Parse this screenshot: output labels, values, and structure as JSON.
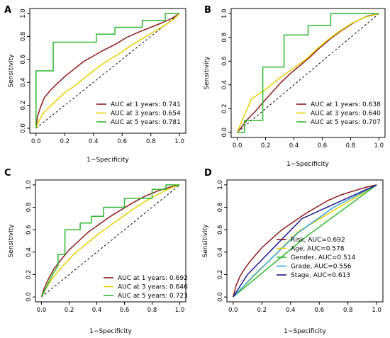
{
  "chart_data": [
    {
      "type": "line",
      "panel": "A",
      "xlabel": "1−Specificity",
      "ylabel": "Sensitivity",
      "xlim": [
        0,
        1
      ],
      "ylim": [
        0,
        1
      ],
      "xticks": [
        "0.0",
        "0.2",
        "0.4",
        "0.6",
        "0.8",
        "1.0"
      ],
      "yticks": [
        "0.0",
        "0.2",
        "0.4",
        "0.6",
        "0.8",
        "1.0"
      ],
      "legend_position": "bottom-right",
      "reference_line": "diagonal-dashed",
      "series": [
        {
          "name": "AUC at 1 years: 0.741",
          "color": "#8B1A1A",
          "points": [
            [
              0,
              0
            ],
            [
              0.01,
              0.1
            ],
            [
              0.03,
              0.18
            ],
            [
              0.06,
              0.27
            ],
            [
              0.1,
              0.33
            ],
            [
              0.14,
              0.38
            ],
            [
              0.2,
              0.45
            ],
            [
              0.27,
              0.52
            ],
            [
              0.33,
              0.58
            ],
            [
              0.4,
              0.63
            ],
            [
              0.47,
              0.68
            ],
            [
              0.55,
              0.73
            ],
            [
              0.63,
              0.79
            ],
            [
              0.72,
              0.84
            ],
            [
              0.8,
              0.88
            ],
            [
              0.88,
              0.92
            ],
            [
              0.95,
              0.96
            ],
            [
              1,
              1
            ]
          ]
        },
        {
          "name": "AUC at 3 years: 0.654",
          "color": "#E6D000",
          "points": [
            [
              0,
              0
            ],
            [
              0.02,
              0.06
            ],
            [
              0.05,
              0.13
            ],
            [
              0.09,
              0.18
            ],
            [
              0.14,
              0.24
            ],
            [
              0.2,
              0.31
            ],
            [
              0.27,
              0.37
            ],
            [
              0.34,
              0.44
            ],
            [
              0.42,
              0.52
            ],
            [
              0.5,
              0.59
            ],
            [
              0.58,
              0.65
            ],
            [
              0.66,
              0.72
            ],
            [
              0.74,
              0.78
            ],
            [
              0.82,
              0.84
            ],
            [
              0.9,
              0.9
            ],
            [
              0.96,
              0.95
            ],
            [
              1,
              1
            ]
          ]
        },
        {
          "name": "AUC at 5 years: 0.781",
          "color": "#2EB82E",
          "points": [
            [
              0,
              0
            ],
            [
              0,
              0.5
            ],
            [
              0.12,
              0.5
            ],
            [
              0.12,
              0.75
            ],
            [
              0.42,
              0.75
            ],
            [
              0.42,
              0.82
            ],
            [
              0.55,
              0.82
            ],
            [
              0.55,
              0.88
            ],
            [
              0.74,
              0.88
            ],
            [
              0.74,
              0.94
            ],
            [
              0.9,
              0.94
            ],
            [
              0.9,
              1
            ],
            [
              1,
              1
            ]
          ]
        }
      ]
    },
    {
      "type": "line",
      "panel": "B",
      "xlabel": "1−Specificity",
      "ylabel": "Sensitivity",
      "xlim": [
        0,
        1
      ],
      "ylim": [
        0,
        1
      ],
      "xticks": [
        "0.0",
        "0.2",
        "0.4",
        "0.6",
        "0.8",
        "1.0"
      ],
      "yticks": [
        "0.0",
        "0.2",
        "0.4",
        "0.6",
        "0.8",
        "1.0"
      ],
      "legend_position": "bottom-right",
      "reference_line": "diagonal-dashed",
      "series": [
        {
          "name": "AUC at 1 years: 0.638",
          "color": "#8B1A1A",
          "points": [
            [
              0,
              0
            ],
            [
              0.04,
              0.06
            ],
            [
              0.08,
              0.12
            ],
            [
              0.13,
              0.18
            ],
            [
              0.18,
              0.25
            ],
            [
              0.24,
              0.33
            ],
            [
              0.3,
              0.41
            ],
            [
              0.37,
              0.49
            ],
            [
              0.44,
              0.56
            ],
            [
              0.51,
              0.63
            ],
            [
              0.58,
              0.71
            ],
            [
              0.66,
              0.79
            ],
            [
              0.74,
              0.86
            ],
            [
              0.83,
              0.93
            ],
            [
              0.92,
              0.98
            ],
            [
              1,
              1
            ]
          ]
        },
        {
          "name": "AUC at 3 years: 0.640",
          "color": "#E6D000",
          "points": [
            [
              0,
              0
            ],
            [
              0.03,
              0.09
            ],
            [
              0.07,
              0.2
            ],
            [
              0.1,
              0.28
            ],
            [
              0.16,
              0.33
            ],
            [
              0.22,
              0.38
            ],
            [
              0.28,
              0.44
            ],
            [
              0.35,
              0.5
            ],
            [
              0.42,
              0.56
            ],
            [
              0.49,
              0.62
            ],
            [
              0.56,
              0.7
            ],
            [
              0.64,
              0.78
            ],
            [
              0.72,
              0.85
            ],
            [
              0.81,
              0.92
            ],
            [
              0.9,
              0.97
            ],
            [
              1,
              1
            ]
          ]
        },
        {
          "name": "AUC at 5 years: 0.707",
          "color": "#2EB82E",
          "points": [
            [
              0,
              0
            ],
            [
              0.05,
              0
            ],
            [
              0.05,
              0.1
            ],
            [
              0.18,
              0.1
            ],
            [
              0.18,
              0.55
            ],
            [
              0.33,
              0.55
            ],
            [
              0.33,
              0.82
            ],
            [
              0.5,
              0.82
            ],
            [
              0.5,
              0.9
            ],
            [
              0.66,
              0.9
            ],
            [
              0.66,
              1
            ],
            [
              1,
              1
            ]
          ]
        }
      ]
    },
    {
      "type": "line",
      "panel": "C",
      "xlabel": "1−Specificity",
      "ylabel": "Sensitivity",
      "xlim": [
        0,
        1
      ],
      "ylim": [
        0,
        1
      ],
      "xticks": [
        "0.0",
        "0.2",
        "0.4",
        "0.6",
        "0.8",
        "1.0"
      ],
      "yticks": [
        "0.0",
        "0.2",
        "0.4",
        "0.6",
        "0.8",
        "1.0"
      ],
      "legend_position": "bottom-right",
      "reference_line": "diagonal-dashed",
      "series": [
        {
          "name": "AUC at 1 years: 0.692",
          "color": "#8B1A1A",
          "points": [
            [
              0,
              0
            ],
            [
              0.02,
              0.08
            ],
            [
              0.05,
              0.16
            ],
            [
              0.09,
              0.25
            ],
            [
              0.14,
              0.33
            ],
            [
              0.2,
              0.42
            ],
            [
              0.27,
              0.5
            ],
            [
              0.34,
              0.58
            ],
            [
              0.42,
              0.65
            ],
            [
              0.5,
              0.72
            ],
            [
              0.58,
              0.78
            ],
            [
              0.66,
              0.84
            ],
            [
              0.75,
              0.9
            ],
            [
              0.85,
              0.95
            ],
            [
              0.93,
              0.98
            ],
            [
              1,
              1
            ]
          ]
        },
        {
          "name": "AUC at 3 years: 0.646",
          "color": "#E6D000",
          "points": [
            [
              0,
              0
            ],
            [
              0.03,
              0.07
            ],
            [
              0.07,
              0.15
            ],
            [
              0.12,
              0.23
            ],
            [
              0.18,
              0.31
            ],
            [
              0.25,
              0.4
            ],
            [
              0.33,
              0.48
            ],
            [
              0.41,
              0.56
            ],
            [
              0.5,
              0.64
            ],
            [
              0.58,
              0.71
            ],
            [
              0.67,
              0.79
            ],
            [
              0.76,
              0.86
            ],
            [
              0.85,
              0.92
            ],
            [
              0.93,
              0.97
            ],
            [
              1,
              1
            ]
          ]
        },
        {
          "name": "AUC at 5 years: 0.723",
          "color": "#2EB82E",
          "points": [
            [
              0,
              0
            ],
            [
              0.04,
              0.1
            ],
            [
              0.08,
              0.2
            ],
            [
              0.12,
              0.28
            ],
            [
              0.12,
              0.38
            ],
            [
              0.17,
              0.38
            ],
            [
              0.17,
              0.6
            ],
            [
              0.28,
              0.6
            ],
            [
              0.28,
              0.66
            ],
            [
              0.36,
              0.66
            ],
            [
              0.36,
              0.72
            ],
            [
              0.45,
              0.72
            ],
            [
              0.45,
              0.8
            ],
            [
              0.6,
              0.8
            ],
            [
              0.6,
              0.88
            ],
            [
              0.8,
              0.88
            ],
            [
              0.8,
              0.96
            ],
            [
              0.9,
              0.96
            ],
            [
              0.9,
              1
            ],
            [
              1,
              1
            ]
          ]
        }
      ]
    },
    {
      "type": "line",
      "panel": "D",
      "xlabel": "1−Specificity",
      "ylabel": "Sensitivity",
      "xlim": [
        0,
        1
      ],
      "ylim": [
        0,
        1
      ],
      "xticks": [
        "0.0",
        "0.2",
        "0.4",
        "0.6",
        "0.8",
        "1.0"
      ],
      "yticks": [
        "0.0",
        "0.2",
        "0.4",
        "0.6",
        "0.8",
        "1.0"
      ],
      "legend_position": "bottom-right",
      "reference_line": "none",
      "series": [
        {
          "name": "Risk, AUC=0.692",
          "color": "#8B1A1A",
          "points": [
            [
              0,
              0
            ],
            [
              0.02,
              0.1
            ],
            [
              0.05,
              0.19
            ],
            [
              0.09,
              0.27
            ],
            [
              0.14,
              0.35
            ],
            [
              0.2,
              0.44
            ],
            [
              0.27,
              0.52
            ],
            [
              0.34,
              0.6
            ],
            [
              0.42,
              0.67
            ],
            [
              0.5,
              0.74
            ],
            [
              0.58,
              0.8
            ],
            [
              0.66,
              0.86
            ],
            [
              0.75,
              0.91
            ],
            [
              0.85,
              0.95
            ],
            [
              0.93,
              0.98
            ],
            [
              1,
              1
            ]
          ]
        },
        {
          "name": "Age, AUC=0.578",
          "color": "#E6D000",
          "points": [
            [
              0,
              0
            ],
            [
              0.45,
              0.58
            ],
            [
              1,
              1
            ]
          ]
        },
        {
          "name": "Gender, AUC=0.514",
          "color": "#2EB82E",
          "points": [
            [
              0,
              0
            ],
            [
              0.5,
              0.53
            ],
            [
              1,
              1
            ]
          ]
        },
        {
          "name": "Grade, AUC=0.556",
          "color": "#33A3E0",
          "points": [
            [
              0,
              0
            ],
            [
              0.15,
              0.2
            ],
            [
              0.45,
              0.57
            ],
            [
              0.7,
              0.8
            ],
            [
              1,
              1
            ]
          ]
        },
        {
          "name": "Stage, AUC=0.613",
          "color": "#1A1A8C",
          "points": [
            [
              0,
              0
            ],
            [
              0.1,
              0.2
            ],
            [
              0.48,
              0.7
            ],
            [
              1,
              1
            ]
          ]
        }
      ]
    }
  ]
}
